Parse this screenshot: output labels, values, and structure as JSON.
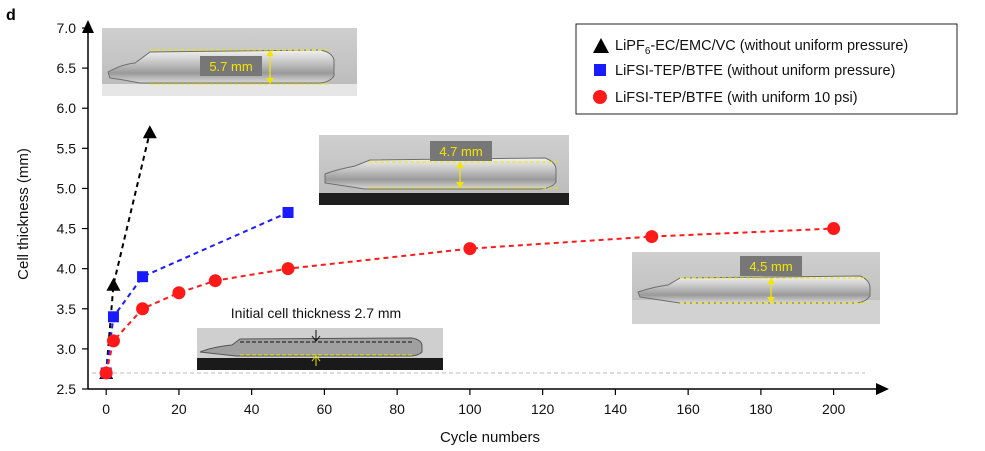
{
  "panel_label": "d",
  "chart_data": {
    "type": "scatter",
    "xlabel": "Cycle numbers",
    "ylabel": "Cell thickness (mm)",
    "xlim": [
      -5,
      210
    ],
    "ylim": [
      2.5,
      7.0
    ],
    "x_ticks": [
      "0",
      "20",
      "40",
      "60",
      "80",
      "100",
      "120",
      "140",
      "160",
      "180",
      "200"
    ],
    "y_ticks": [
      "2.5",
      "3.0",
      "3.5",
      "4.0",
      "4.5",
      "5.0",
      "5.5",
      "6.0",
      "6.5",
      "7.0"
    ],
    "baseline": 2.7,
    "legend_position": "top-right",
    "series": [
      {
        "name_parts": [
          "LiPF",
          "6",
          "-EC/EMC/VC (without uniform pressure)"
        ],
        "marker": "triangle",
        "color": "#000000",
        "line_style": "dashed",
        "x": [
          0,
          2,
          12
        ],
        "y": [
          2.7,
          3.8,
          5.7
        ]
      },
      {
        "name": "LiFSI-TEP/BTFE (without uniform pressure)",
        "marker": "square",
        "color": "#1a1aff",
        "line_style": "dashed",
        "x": [
          0,
          2,
          10,
          50
        ],
        "y": [
          2.7,
          3.4,
          3.9,
          4.7
        ]
      },
      {
        "name": "LiFSI-TEP/BTFE (with uniform 10 psi)",
        "marker": "circle",
        "color": "#ff1a1a",
        "line_style": "dashed",
        "x": [
          0,
          2,
          10,
          20,
          30,
          50,
          100,
          150,
          200
        ],
        "y": [
          2.7,
          3.1,
          3.5,
          3.7,
          3.85,
          4.0,
          4.25,
          4.4,
          4.5
        ]
      }
    ],
    "annotations": {
      "photo_1": "5.7 mm",
      "photo_2": "4.7 mm",
      "photo_3": "4.5 mm",
      "initial_text": "Initial cell thickness 2.7 mm"
    }
  },
  "colors": {
    "photo_label": "#f2e600",
    "baseline": "#bbbbbb"
  }
}
